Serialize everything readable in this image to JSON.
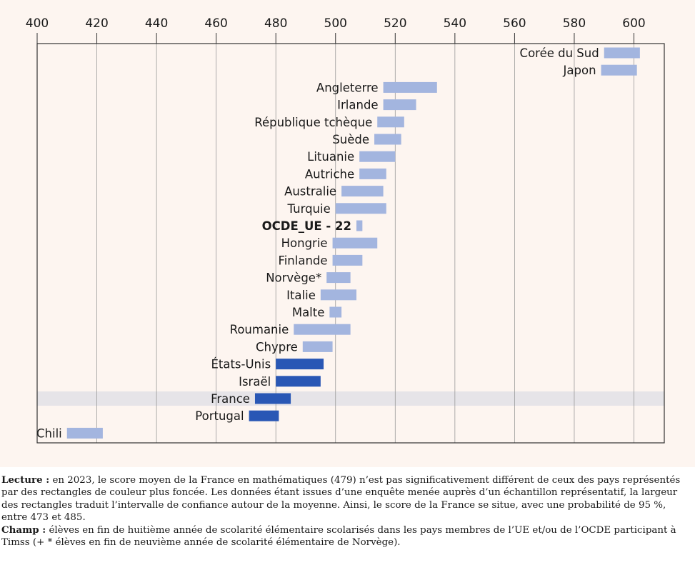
{
  "chart_data": {
    "type": "range-bar",
    "title": "",
    "xlabel": "",
    "ylabel": "",
    "xlim": [
      400,
      610
    ],
    "x_ticks": [
      400,
      420,
      440,
      460,
      480,
      500,
      520,
      540,
      560,
      580,
      600
    ],
    "grid": true,
    "highlight_row": "France",
    "colors": {
      "light": "#a3b5df",
      "dark": "#2957b5",
      "highlight_band": "#e6e4e8",
      "grid": "#999999",
      "text": "#1a1a1a"
    },
    "rows": [
      {
        "label": "Corée du Sud",
        "low": 590,
        "high": 602,
        "significant": false,
        "bold": false
      },
      {
        "label": "Japon",
        "low": 589,
        "high": 601,
        "significant": false,
        "bold": false
      },
      {
        "label": "Angleterre",
        "low": 516,
        "high": 534,
        "significant": false,
        "bold": false
      },
      {
        "label": "Irlande",
        "low": 516,
        "high": 527,
        "significant": false,
        "bold": false
      },
      {
        "label": "République tchèque",
        "low": 514,
        "high": 523,
        "significant": false,
        "bold": false
      },
      {
        "label": "Suède",
        "low": 513,
        "high": 522,
        "significant": false,
        "bold": false
      },
      {
        "label": "Lituanie",
        "low": 508,
        "high": 520,
        "significant": false,
        "bold": false
      },
      {
        "label": "Autriche",
        "low": 508,
        "high": 517,
        "significant": false,
        "bold": false
      },
      {
        "label": "Australie",
        "low": 502,
        "high": 516,
        "significant": false,
        "bold": false
      },
      {
        "label": "Turquie",
        "low": 500,
        "high": 517,
        "significant": false,
        "bold": false
      },
      {
        "label": "OCDE_UE - 22",
        "low": 507,
        "high": 509,
        "significant": false,
        "bold": true
      },
      {
        "label": "Hongrie",
        "low": 499,
        "high": 514,
        "significant": false,
        "bold": false
      },
      {
        "label": "Finlande",
        "low": 499,
        "high": 509,
        "significant": false,
        "bold": false
      },
      {
        "label": "Norvège*",
        "low": 497,
        "high": 505,
        "significant": false,
        "bold": false
      },
      {
        "label": "Italie",
        "low": 495,
        "high": 507,
        "significant": false,
        "bold": false
      },
      {
        "label": "Malte",
        "low": 498,
        "high": 502,
        "significant": false,
        "bold": false
      },
      {
        "label": "Roumanie",
        "low": 486,
        "high": 505,
        "significant": false,
        "bold": false
      },
      {
        "label": "Chypre",
        "low": 489,
        "high": 499,
        "significant": false,
        "bold": false
      },
      {
        "label": "États-Unis",
        "low": 480,
        "high": 496,
        "significant": true,
        "bold": false
      },
      {
        "label": "Israël",
        "low": 480,
        "high": 495,
        "significant": true,
        "bold": false
      },
      {
        "label": "France",
        "low": 473,
        "high": 485,
        "significant": true,
        "bold": false
      },
      {
        "label": "Portugal",
        "low": 471,
        "high": 481,
        "significant": true,
        "bold": false
      },
      {
        "label": "Chili",
        "low": 410,
        "high": 422,
        "significant": false,
        "bold": false
      }
    ]
  },
  "caption": {
    "lecture_label": "Lecture :",
    "lecture_text": " en 2023, le score moyen de la France en mathématiques (479) n’est pas significativement différent de ceux des pays représentés par des rectangles de couleur plus foncée. Les données étant issues d’une enquête menée auprès d’un échantillon représentatif, la largeur des rectangles traduit l’intervalle de confiance autour de la moyenne. Ainsi, le score de la France se situe, avec une probabilité de 95 %, entre 473 et 485.",
    "champ_label": "Champ :",
    "champ_text": " élèves en fin de huitième année de scolarité élémentaire scolarisés dans les pays membres de l’UE et/ou de l’OCDE participant à Timss (+ * élèves en fin de neuvième année de scolarité élémentaire de Norvège)."
  }
}
